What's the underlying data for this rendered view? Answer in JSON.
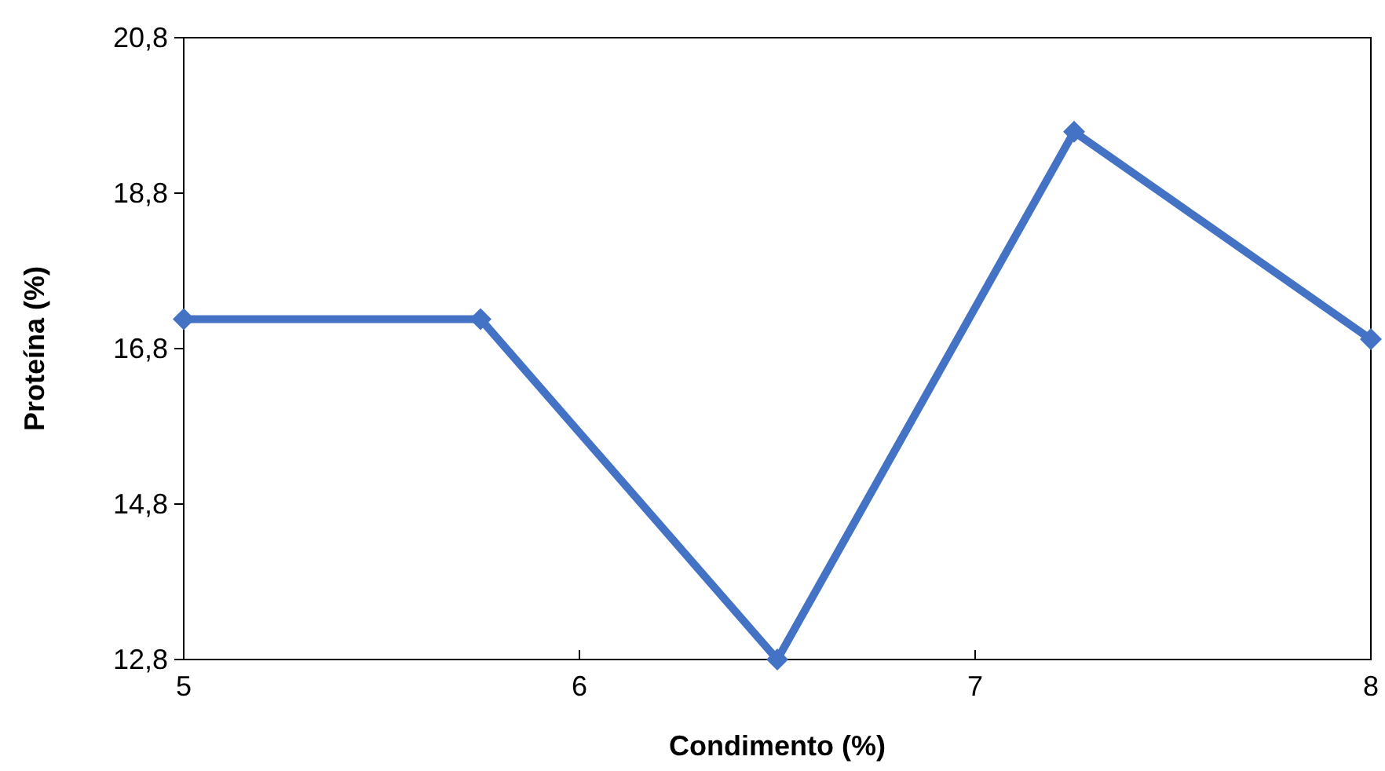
{
  "chart_data": {
    "type": "line",
    "xlabel": "Condimento (%)",
    "ylabel": "Proteína (%)",
    "x": [
      5,
      5.75,
      6.5,
      7.25,
      8
    ],
    "series": [
      {
        "color": "#4472c4",
        "values": [
          17.18,
          17.18,
          12.8,
          19.59,
          16.92
        ]
      }
    ],
    "xlim": [
      5,
      8
    ],
    "xticks": [
      5,
      6,
      7,
      8
    ],
    "ylim": [
      12.8,
      20.8
    ],
    "yticks": [
      {
        "value": 12.8,
        "label": "12,8"
      },
      {
        "value": 14.8,
        "label": "14,8"
      },
      {
        "value": 16.8,
        "label": "16,8"
      },
      {
        "value": 18.8,
        "label": "18,8"
      },
      {
        "value": 20.8,
        "label": "20,8"
      }
    ],
    "grid": false,
    "marker": "diamond",
    "line_style": "solid"
  }
}
